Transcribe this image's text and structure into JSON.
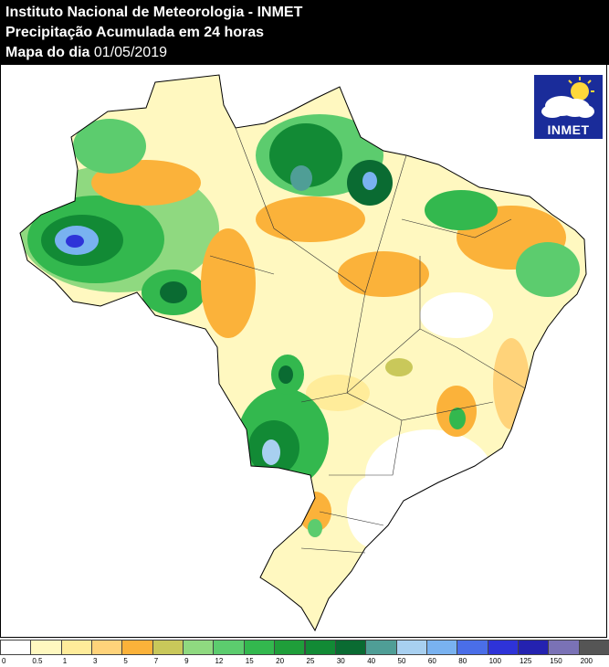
{
  "header": {
    "line1": "Instituto Nacional de Meteorologia - INMET",
    "line2": "Precipitação Acumulada em 24 horas",
    "line3_label": "Mapa do dia",
    "line3_date": "01/05/2019"
  },
  "logo": {
    "text": "INMET",
    "icon": "sun-cloud-icon"
  },
  "legend": {
    "colors": [
      "#ffffff",
      "#fff8c0",
      "#ffec9a",
      "#ffd37a",
      "#fbb23a",
      "#c9c85a",
      "#8fd980",
      "#5ccc6e",
      "#33b84e",
      "#1f9e3a",
      "#128a35",
      "#0a6b32",
      "#4f9e96",
      "#a8d0f0",
      "#79b2f0",
      "#4a6ee8",
      "#2e33d8",
      "#2422b0",
      "#7a72b6",
      "#555555"
    ],
    "ticks": [
      "0",
      "0.5",
      "1",
      "3",
      "5",
      "7",
      "9",
      "12",
      "15",
      "20",
      "25",
      "30",
      "40",
      "50",
      "60",
      "80",
      "100",
      "125",
      "150",
      "200"
    ]
  }
}
